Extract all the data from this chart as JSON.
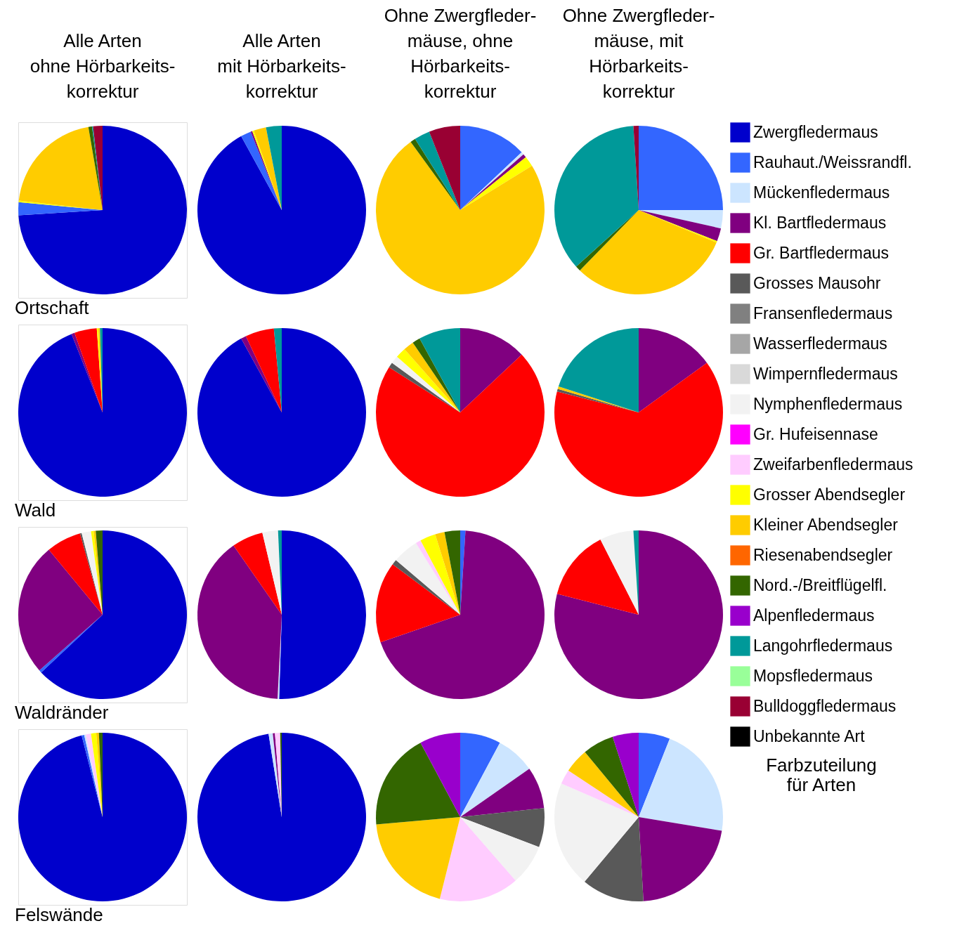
{
  "chart_data": [
    {
      "type": "pie",
      "title": "Alle Arten\nohne Hörbarkeits-\nkorrektur",
      "xlabel": "Ortschaft",
      "categories": [
        null,
        null,
        null,
        null,
        null,
        null,
        null
      ],
      "values": [
        74,
        2.5,
        0.3,
        20.5,
        0.7,
        0.2,
        1.8
      ],
      "colors": [
        "#0000cc",
        "#3366ff",
        "#ffff00",
        "#ffcc00",
        "#336600",
        "#009999",
        "#990033"
      ]
    },
    {
      "type": "pie",
      "title": "Alle Arten\nmit Hörbarkeits-\nkorrektur",
      "categories": [
        null,
        null,
        null,
        null,
        null,
        null
      ],
      "values": [
        92,
        2,
        0.3,
        0.3,
        2.4,
        3
      ],
      "colors": [
        "#0000cc",
        "#3366ff",
        "#800080",
        "#ffff00",
        "#ffcc00",
        "#009999"
      ]
    },
    {
      "type": "pie",
      "title": "Ohne Zwergfleder-\nmäuse, ohne\nHörbarkeits-\nkorrektur",
      "categories": [
        null,
        null,
        null,
        null,
        null,
        null,
        null,
        null
      ],
      "values": [
        13,
        0.5,
        0.7,
        2,
        73.8,
        1,
        3,
        6
      ],
      "colors": [
        "#3366ff",
        "#cce5ff",
        "#800080",
        "#ffff00",
        "#ffcc00",
        "#336600",
        "#009999",
        "#990033"
      ]
    },
    {
      "type": "pie",
      "title": "Ohne Zwergfleder-\nmäuse, mit\nHörbarkeits-\nkorrektur",
      "legend": "right",
      "legend_title": "Farbzuteilung\nfür Arten",
      "categories": [
        "Zwergfledermaus",
        "Rauhaut./Weissrandfl.",
        "Mückenfledermaus",
        "Kl. Bartfledermaus",
        "Gr. Bartfledermaus",
        "Grosses Mausohr",
        "Fransenfledermaus",
        "Wasserfledermaus",
        "Wimpernfledermaus",
        "Nymphenfledermaus",
        "Gr. Hufeisennase",
        "Zweifarbenfledermaus",
        "Grosser Abendsegler",
        "Kleiner Abendsegler",
        "Riesenabendsegler",
        "Nord.-/Breitflügelfl.",
        "Alpenfledermaus",
        "Langohrfledermaus",
        "Mopsfledermaus",
        "Bulldoggfledermaus",
        "Unbekannte Art"
      ],
      "values": [
        0,
        25,
        3.5,
        2.5,
        0,
        0,
        0,
        0,
        0,
        0,
        0,
        0,
        0.3,
        31,
        0,
        1,
        0,
        35.7,
        0,
        1,
        0
      ],
      "colors": [
        "#0000cc",
        "#3366ff",
        "#cce5ff",
        "#800080",
        "#ff0000",
        "#595959",
        "#808080",
        "#a6a6a6",
        "#d9d9d9",
        "#f2f2f2",
        "#ff00ff",
        "#ffccff",
        "#ffff00",
        "#ffcc00",
        "#ff6600",
        "#336600",
        "#9900cc",
        "#009999",
        "#99ff99",
        "#990033",
        "#000000"
      ]
    },
    {
      "type": "pie",
      "xlabel": "Wald",
      "categories": [
        null,
        null,
        null,
        null,
        null,
        null
      ],
      "values": [
        94,
        0.6,
        4.3,
        0.3,
        0.3,
        0.5
      ],
      "colors": [
        "#0000cc",
        "#800080",
        "#ff0000",
        "#ffff00",
        "#ffcc00",
        "#009999"
      ]
    },
    {
      "type": "pie",
      "categories": [
        null,
        null,
        null,
        null
      ],
      "values": [
        92,
        1,
        5.5,
        1.5
      ],
      "colors": [
        "#0000cc",
        "#800080",
        "#ff0000",
        "#009999"
      ]
    },
    {
      "type": "pie",
      "categories": [
        null,
        null,
        null,
        null,
        null,
        null,
        null,
        null
      ],
      "values": [
        13,
        71,
        1,
        1.5,
        2,
        2,
        1.5,
        8
      ],
      "colors": [
        "#800080",
        "#ff0000",
        "#595959",
        "#f2f2f2",
        "#ffff00",
        "#ffcc00",
        "#336600",
        "#009999"
      ]
    },
    {
      "type": "pie",
      "categories": [
        null,
        null,
        null,
        null,
        null
      ],
      "values": [
        15,
        64,
        0.5,
        0.5,
        20
      ],
      "colors": [
        "#800080",
        "#ff0000",
        "#595959",
        "#ffcc00",
        "#009999"
      ]
    },
    {
      "type": "pie",
      "xlabel": "Waldränder",
      "categories": [
        null,
        null,
        null,
        null,
        null,
        null,
        null,
        null,
        null
      ],
      "values": [
        63,
        0.5,
        25.5,
        6.7,
        0.3,
        1.8,
        0.5,
        0.4,
        1.3
      ],
      "colors": [
        "#0000cc",
        "#3366ff",
        "#800080",
        "#ff0000",
        "#595959",
        "#f2f2f2",
        "#ffff00",
        "#ffcc00",
        "#336600"
      ]
    },
    {
      "type": "pie",
      "categories": [
        null,
        null,
        null,
        null,
        null,
        null
      ],
      "values": [
        50.5,
        0.3,
        39.5,
        6,
        3,
        0.7
      ],
      "colors": [
        "#0000cc",
        "#cce5ff",
        "#800080",
        "#ff0000",
        "#f2f2f2",
        "#009999"
      ]
    },
    {
      "type": "pie",
      "categories": [
        null,
        null,
        null,
        null,
        null,
        null,
        null,
        null,
        null
      ],
      "values": [
        1,
        68.7,
        15.5,
        1,
        5,
        1,
        3,
        1.8,
        3
      ],
      "colors": [
        "#3366ff",
        "#800080",
        "#ff0000",
        "#595959",
        "#f2f2f2",
        "#ffccff",
        "#ffff00",
        "#ffcc00",
        "#336600"
      ]
    },
    {
      "type": "pie",
      "categories": [
        null,
        null,
        null,
        null
      ],
      "values": [
        79,
        13.5,
        6.5,
        1
      ],
      "colors": [
        "#800080",
        "#ff0000",
        "#f2f2f2",
        "#009999"
      ]
    },
    {
      "type": "pie",
      "xlabel": "Felswände",
      "categories": [
        null,
        null,
        null,
        null,
        null,
        null,
        null
      ],
      "values": [
        96,
        0.5,
        0.3,
        1,
        1,
        0.5,
        0.7
      ],
      "colors": [
        "#0000cc",
        "#3366ff",
        "#cce5ff",
        "#ffccff",
        "#ffff00",
        "#ffcc00",
        "#336600"
      ]
    },
    {
      "type": "pie",
      "categories": [
        null,
        null,
        null,
        null,
        null
      ],
      "values": [
        97.5,
        0.8,
        0.4,
        1,
        0.3
      ],
      "colors": [
        "#0000cc",
        "#cce5ff",
        "#800080",
        "#ffccff",
        "#336600"
      ]
    },
    {
      "type": "pie",
      "categories": [
        null,
        null,
        null,
        null,
        null,
        null,
        null,
        null,
        null
      ],
      "values": [
        7.8,
        7.5,
        8,
        7.5,
        7.8,
        15.3,
        19.7,
        18.6,
        7.8
      ],
      "colors": [
        "#3366ff",
        "#cce5ff",
        "#800080",
        "#595959",
        "#f2f2f2",
        "#ffccff",
        "#ffcc00",
        "#336600",
        "#9900cc"
      ]
    },
    {
      "type": "pie",
      "categories": [
        null,
        null,
        null,
        null,
        null,
        null,
        null,
        null,
        null
      ],
      "values": [
        6,
        21.6,
        21.5,
        12,
        20.4,
        2.8,
        4.7,
        6,
        5
      ],
      "colors": [
        "#3366ff",
        "#cce5ff",
        "#800080",
        "#595959",
        "#f2f2f2",
        "#ffccff",
        "#ffcc00",
        "#336600",
        "#9900cc"
      ]
    }
  ]
}
